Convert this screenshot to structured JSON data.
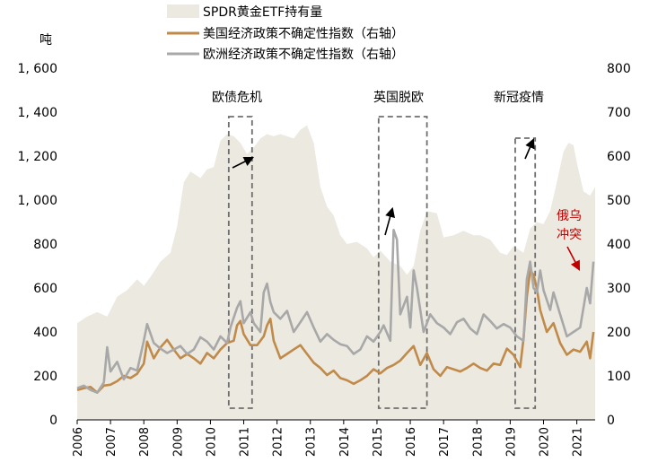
{
  "chart_data": {
    "type": "area+line",
    "left_unit": "吨",
    "left_ylim": [
      0,
      1600
    ],
    "left_ticks": [
      "0",
      "200",
      "400",
      "600",
      "800",
      "1, 000",
      "1, 200",
      "1, 400",
      "1, 600"
    ],
    "right_ylim": [
      0,
      800
    ],
    "right_ticks": [
      "0",
      "100",
      "200",
      "300",
      "400",
      "500",
      "600",
      "700",
      "800"
    ],
    "xlim": [
      2006.0,
      2021.55
    ],
    "x_ticks": [
      "2006",
      "2007",
      "2008",
      "2009",
      "2010",
      "2011",
      "2012",
      "2013",
      "2014",
      "2015",
      "2016",
      "2017",
      "2018",
      "2019",
      "2020",
      "2021"
    ],
    "legend": [
      {
        "name": "SPDR黄金ETF持有量",
        "color": "#ece9e0",
        "kind": "area"
      },
      {
        "name": "美国经济政策不确定性指数（右轴）",
        "color": "#c08a4a",
        "kind": "line"
      },
      {
        "name": "欧洲经济政策不确定性指数（右轴）",
        "color": "#a8a8a8",
        "kind": "line"
      }
    ],
    "series": [
      {
        "name": "SPDR黄金ETF持有量",
        "axis": "left",
        "points": [
          [
            2006.0,
            440
          ],
          [
            2006.3,
            470
          ],
          [
            2006.6,
            490
          ],
          [
            2006.9,
            470
          ],
          [
            2007.2,
            560
          ],
          [
            2007.5,
            590
          ],
          [
            2007.8,
            640
          ],
          [
            2008.0,
            610
          ],
          [
            2008.2,
            650
          ],
          [
            2008.5,
            720
          ],
          [
            2008.8,
            760
          ],
          [
            2009.0,
            880
          ],
          [
            2009.2,
            1080
          ],
          [
            2009.4,
            1130
          ],
          [
            2009.7,
            1100
          ],
          [
            2009.9,
            1140
          ],
          [
            2010.1,
            1150
          ],
          [
            2010.3,
            1270
          ],
          [
            2010.5,
            1300
          ],
          [
            2010.7,
            1290
          ],
          [
            2010.9,
            1260
          ],
          [
            2011.1,
            1210
          ],
          [
            2011.3,
            1240
          ],
          [
            2011.5,
            1280
          ],
          [
            2011.7,
            1300
          ],
          [
            2011.9,
            1290
          ],
          [
            2012.1,
            1300
          ],
          [
            2012.3,
            1290
          ],
          [
            2012.5,
            1280
          ],
          [
            2012.7,
            1320
          ],
          [
            2012.9,
            1340
          ],
          [
            2013.1,
            1260
          ],
          [
            2013.3,
            1060
          ],
          [
            2013.5,
            970
          ],
          [
            2013.7,
            930
          ],
          [
            2013.9,
            840
          ],
          [
            2014.1,
            800
          ],
          [
            2014.4,
            810
          ],
          [
            2014.7,
            780
          ],
          [
            2014.9,
            740
          ],
          [
            2015.1,
            770
          ],
          [
            2015.4,
            720
          ],
          [
            2015.7,
            700
          ],
          [
            2015.9,
            660
          ],
          [
            2016.1,
            700
          ],
          [
            2016.3,
            860
          ],
          [
            2016.5,
            950
          ],
          [
            2016.8,
            940
          ],
          [
            2017.0,
            830
          ],
          [
            2017.3,
            840
          ],
          [
            2017.6,
            860
          ],
          [
            2017.9,
            840
          ],
          [
            2018.1,
            840
          ],
          [
            2018.4,
            820
          ],
          [
            2018.7,
            760
          ],
          [
            2018.9,
            750
          ],
          [
            2019.1,
            790
          ],
          [
            2019.4,
            760
          ],
          [
            2019.6,
            870
          ],
          [
            2019.8,
            900
          ],
          [
            2020.0,
            890
          ],
          [
            2020.2,
            950
          ],
          [
            2020.4,
            1080
          ],
          [
            2020.6,
            1220
          ],
          [
            2020.75,
            1260
          ],
          [
            2020.9,
            1250
          ],
          [
            2021.0,
            1170
          ],
          [
            2021.2,
            1040
          ],
          [
            2021.4,
            1020
          ],
          [
            2021.55,
            1060
          ]
        ]
      },
      {
        "name": "美国经济政策不确定性指数",
        "axis": "right",
        "points": [
          [
            2006.0,
            68
          ],
          [
            2006.2,
            72
          ],
          [
            2006.4,
            75
          ],
          [
            2006.6,
            62
          ],
          [
            2006.8,
            78
          ],
          [
            2007.0,
            80
          ],
          [
            2007.2,
            88
          ],
          [
            2007.4,
            100
          ],
          [
            2007.6,
            95
          ],
          [
            2007.8,
            105
          ],
          [
            2008.0,
            128
          ],
          [
            2008.1,
            178
          ],
          [
            2008.3,
            140
          ],
          [
            2008.5,
            165
          ],
          [
            2008.7,
            182
          ],
          [
            2008.9,
            160
          ],
          [
            2009.1,
            140
          ],
          [
            2009.3,
            150
          ],
          [
            2009.5,
            140
          ],
          [
            2009.7,
            128
          ],
          [
            2009.9,
            152
          ],
          [
            2010.1,
            140
          ],
          [
            2010.3,
            160
          ],
          [
            2010.5,
            175
          ],
          [
            2010.7,
            180
          ],
          [
            2010.8,
            215
          ],
          [
            2010.9,
            225
          ],
          [
            2011.0,
            195
          ],
          [
            2011.2,
            170
          ],
          [
            2011.4,
            170
          ],
          [
            2011.6,
            190
          ],
          [
            2011.7,
            215
          ],
          [
            2011.8,
            230
          ],
          [
            2011.9,
            180
          ],
          [
            2012.1,
            140
          ],
          [
            2012.3,
            150
          ],
          [
            2012.5,
            160
          ],
          [
            2012.7,
            170
          ],
          [
            2012.9,
            150
          ],
          [
            2013.1,
            130
          ],
          [
            2013.3,
            118
          ],
          [
            2013.5,
            102
          ],
          [
            2013.7,
            112
          ],
          [
            2013.9,
            95
          ],
          [
            2014.1,
            90
          ],
          [
            2014.3,
            82
          ],
          [
            2014.5,
            90
          ],
          [
            2014.7,
            100
          ],
          [
            2014.9,
            115
          ],
          [
            2015.1,
            106
          ],
          [
            2015.3,
            118
          ],
          [
            2015.5,
            125
          ],
          [
            2015.7,
            135
          ],
          [
            2015.9,
            152
          ],
          [
            2016.1,
            168
          ],
          [
            2016.3,
            125
          ],
          [
            2016.5,
            152
          ],
          [
            2016.7,
            115
          ],
          [
            2016.9,
            100
          ],
          [
            2017.1,
            120
          ],
          [
            2017.3,
            115
          ],
          [
            2017.5,
            110
          ],
          [
            2017.7,
            118
          ],
          [
            2017.9,
            128
          ],
          [
            2018.1,
            118
          ],
          [
            2018.3,
            112
          ],
          [
            2018.5,
            128
          ],
          [
            2018.7,
            125
          ],
          [
            2018.9,
            162
          ],
          [
            2019.1,
            148
          ],
          [
            2019.3,
            120
          ],
          [
            2019.4,
            185
          ],
          [
            2019.5,
            280
          ],
          [
            2019.6,
            340
          ],
          [
            2019.7,
            330
          ],
          [
            2019.8,
            298
          ],
          [
            2019.9,
            250
          ],
          [
            2020.1,
            200
          ],
          [
            2020.3,
            220
          ],
          [
            2020.5,
            175
          ],
          [
            2020.7,
            148
          ],
          [
            2020.9,
            160
          ],
          [
            2021.1,
            155
          ],
          [
            2021.3,
            178
          ],
          [
            2021.4,
            140
          ],
          [
            2021.5,
            200
          ]
        ]
      },
      {
        "name": "欧洲经济政策不确定性指数",
        "axis": "right",
        "points": [
          [
            2006.0,
            72
          ],
          [
            2006.2,
            78
          ],
          [
            2006.4,
            68
          ],
          [
            2006.6,
            62
          ],
          [
            2006.8,
            85
          ],
          [
            2006.9,
            165
          ],
          [
            2007.0,
            110
          ],
          [
            2007.2,
            132
          ],
          [
            2007.4,
            92
          ],
          [
            2007.6,
            118
          ],
          [
            2007.8,
            112
          ],
          [
            2008.0,
            180
          ],
          [
            2008.1,
            218
          ],
          [
            2008.3,
            175
          ],
          [
            2008.5,
            162
          ],
          [
            2008.7,
            152
          ],
          [
            2008.9,
            160
          ],
          [
            2009.1,
            168
          ],
          [
            2009.3,
            150
          ],
          [
            2009.5,
            160
          ],
          [
            2009.7,
            188
          ],
          [
            2009.9,
            178
          ],
          [
            2010.1,
            160
          ],
          [
            2010.3,
            190
          ],
          [
            2010.5,
            175
          ],
          [
            2010.6,
            210
          ],
          [
            2010.8,
            255
          ],
          [
            2010.9,
            270
          ],
          [
            2011.0,
            220
          ],
          [
            2011.2,
            245
          ],
          [
            2011.3,
            220
          ],
          [
            2011.5,
            200
          ],
          [
            2011.6,
            290
          ],
          [
            2011.7,
            310
          ],
          [
            2011.8,
            268
          ],
          [
            2011.9,
            245
          ],
          [
            2012.1,
            230
          ],
          [
            2012.3,
            248
          ],
          [
            2012.5,
            200
          ],
          [
            2012.7,
            222
          ],
          [
            2012.9,
            245
          ],
          [
            2013.1,
            210
          ],
          [
            2013.3,
            178
          ],
          [
            2013.5,
            195
          ],
          [
            2013.7,
            182
          ],
          [
            2013.9,
            172
          ],
          [
            2014.1,
            168
          ],
          [
            2014.3,
            150
          ],
          [
            2014.5,
            160
          ],
          [
            2014.7,
            190
          ],
          [
            2014.9,
            178
          ],
          [
            2015.1,
            200
          ],
          [
            2015.2,
            215
          ],
          [
            2015.4,
            180
          ],
          [
            2015.5,
            432
          ],
          [
            2015.6,
            410
          ],
          [
            2015.7,
            240
          ],
          [
            2015.9,
            280
          ],
          [
            2016.0,
            210
          ],
          [
            2016.1,
            340
          ],
          [
            2016.2,
            300
          ],
          [
            2016.4,
            200
          ],
          [
            2016.6,
            240
          ],
          [
            2016.8,
            220
          ],
          [
            2017.0,
            210
          ],
          [
            2017.2,
            195
          ],
          [
            2017.4,
            222
          ],
          [
            2017.6,
            230
          ],
          [
            2017.8,
            208
          ],
          [
            2018.0,
            195
          ],
          [
            2018.2,
            240
          ],
          [
            2018.4,
            225
          ],
          [
            2018.6,
            208
          ],
          [
            2018.8,
            218
          ],
          [
            2019.0,
            210
          ],
          [
            2019.2,
            190
          ],
          [
            2019.4,
            180
          ],
          [
            2019.5,
            320
          ],
          [
            2019.6,
            360
          ],
          [
            2019.7,
            300
          ],
          [
            2019.8,
            290
          ],
          [
            2019.9,
            340
          ],
          [
            2020.0,
            295
          ],
          [
            2020.2,
            250
          ],
          [
            2020.3,
            290
          ],
          [
            2020.5,
            240
          ],
          [
            2020.7,
            190
          ],
          [
            2020.9,
            200
          ],
          [
            2021.1,
            210
          ],
          [
            2021.3,
            300
          ],
          [
            2021.4,
            265
          ],
          [
            2021.5,
            360
          ]
        ]
      }
    ],
    "annotations": [
      {
        "label": "欧债危机",
        "x0": 2010.55,
        "x1": 2011.25
      },
      {
        "label": "英国脱欧",
        "x0": 2015.05,
        "x1": 2016.5
      },
      {
        "label": "新冠疫情",
        "x0": 2019.15,
        "x1": 2019.75
      }
    ],
    "callout": {
      "line1": "俄乌",
      "line2": "冲突"
    }
  }
}
